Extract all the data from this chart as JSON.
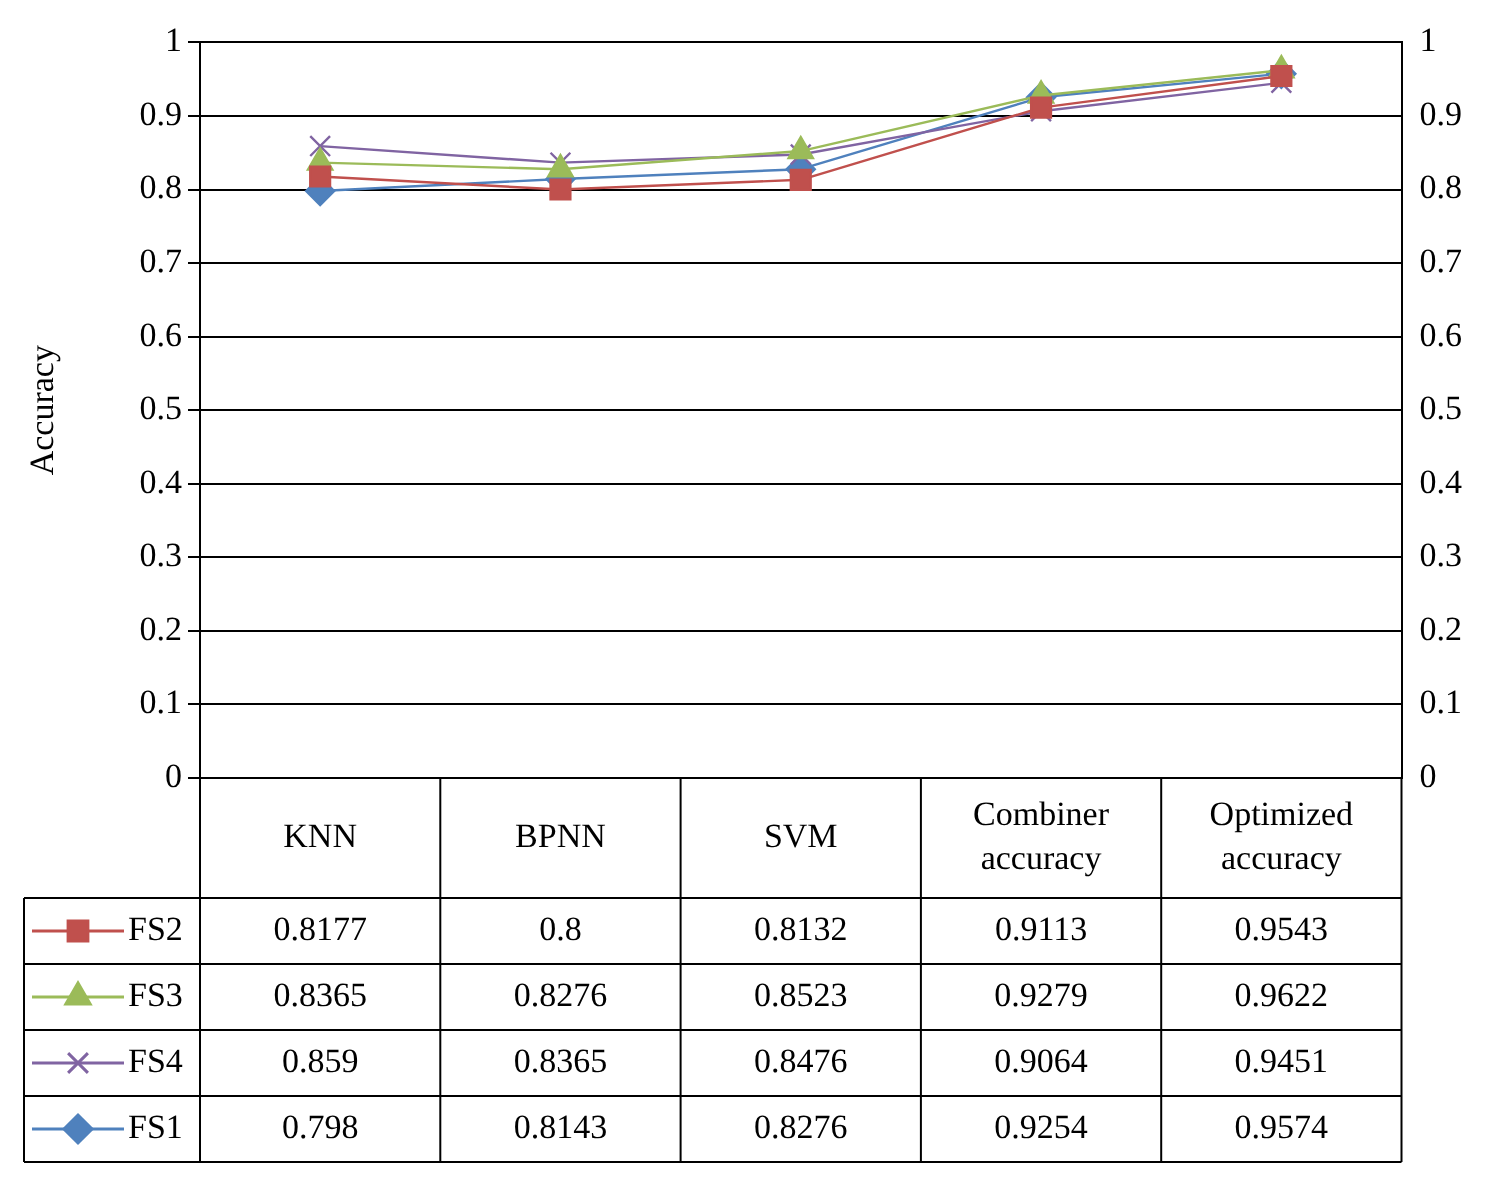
{
  "chart_data": {
    "type": "line",
    "ylabel": "Accuracy",
    "categories": [
      "KNN",
      "BPNN",
      "SVM",
      "Combiner accuracy",
      "Optimized accuracy"
    ],
    "series": [
      {
        "name": "FS2",
        "color": "#c0504d",
        "marker": "square",
        "values": [
          0.8177,
          0.8,
          0.8132,
          0.9113,
          0.9543
        ]
      },
      {
        "name": "FS3",
        "color": "#9bbb59",
        "marker": "triangle",
        "values": [
          0.8365,
          0.8276,
          0.8523,
          0.9279,
          0.9622
        ]
      },
      {
        "name": "FS4",
        "color": "#8064a2",
        "marker": "cross",
        "values": [
          0.859,
          0.8365,
          0.8476,
          0.9064,
          0.9451
        ]
      },
      {
        "name": "FS1",
        "color": "#4f81bd",
        "marker": "diamond",
        "values": [
          0.798,
          0.8143,
          0.8276,
          0.9254,
          0.9574
        ]
      }
    ],
    "ylim": [
      0,
      1
    ],
    "yticks": [
      0,
      0.1,
      0.2,
      0.3,
      0.4,
      0.5,
      0.6,
      0.7,
      0.8,
      0.9,
      1
    ],
    "y2lim": [
      0,
      1
    ],
    "y2ticks": [
      0,
      0.1,
      0.2,
      0.3,
      0.4,
      0.5,
      0.6,
      0.7,
      0.8,
      0.9,
      1
    ],
    "grid": "y",
    "legend": "bottom",
    "data_labels": true
  }
}
